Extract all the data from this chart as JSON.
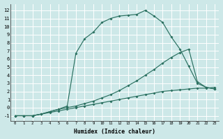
{
  "xlabel": "Humidex (Indice chaleur)",
  "bg_color": "#cde8e8",
  "grid_color": "#ffffff",
  "line_color": "#2a7060",
  "xlim": [
    -0.5,
    23.5
  ],
  "ylim": [
    -1.6,
    12.8
  ],
  "xticks": [
    0,
    1,
    2,
    3,
    4,
    5,
    6,
    7,
    8,
    9,
    10,
    11,
    12,
    13,
    14,
    15,
    16,
    17,
    18,
    19,
    20,
    21,
    22,
    23
  ],
  "yticks": [
    -1,
    0,
    1,
    2,
    3,
    4,
    5,
    6,
    7,
    8,
    9,
    10,
    11,
    12
  ],
  "curve1_x": [
    0,
    1,
    2,
    3,
    4,
    5,
    6,
    7,
    8,
    9,
    10,
    11,
    12,
    13,
    14,
    15,
    16,
    17,
    18,
    19,
    20,
    21,
    22,
    23
  ],
  "curve1_y": [
    -1.0,
    -1.0,
    -1.0,
    -0.8,
    -0.5,
    -0.2,
    0.2,
    6.7,
    8.5,
    9.3,
    10.5,
    11.0,
    11.3,
    11.4,
    11.5,
    12.0,
    11.3,
    10.5,
    8.7,
    7.2,
    5.1,
    3.0,
    2.5,
    2.3
  ],
  "curve2_x": [
    0,
    1,
    2,
    3,
    4,
    5,
    6,
    7,
    8,
    9,
    10,
    11,
    12,
    13,
    14,
    15,
    16,
    17,
    18,
    19,
    20,
    21,
    22,
    23
  ],
  "curve2_y": [
    -1.0,
    -1.0,
    -1.0,
    -0.8,
    -0.5,
    -0.2,
    0.0,
    0.2,
    0.5,
    0.8,
    1.2,
    1.6,
    2.1,
    2.7,
    3.3,
    4.0,
    4.7,
    5.5,
    6.2,
    6.8,
    7.2,
    3.2,
    2.5,
    2.3
  ],
  "curve3_x": [
    0,
    1,
    2,
    3,
    4,
    5,
    6,
    7,
    8,
    9,
    10,
    11,
    12,
    13,
    14,
    15,
    16,
    17,
    18,
    19,
    20,
    21,
    22,
    23
  ],
  "curve3_y": [
    -1.0,
    -1.0,
    -1.0,
    -0.8,
    -0.6,
    -0.4,
    -0.2,
    0.0,
    0.2,
    0.4,
    0.6,
    0.8,
    1.0,
    1.2,
    1.4,
    1.6,
    1.8,
    2.0,
    2.1,
    2.2,
    2.3,
    2.4,
    2.4,
    2.5
  ]
}
